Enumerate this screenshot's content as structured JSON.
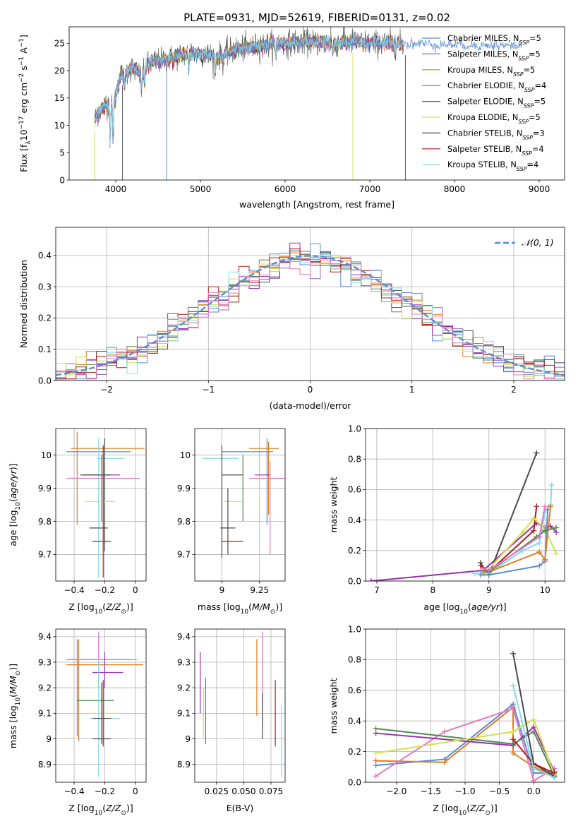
{
  "colors": {
    "Chabrier MILES": "#5b8bd6",
    "Salpeter MILES": "#9467bd",
    "Kroupa MILES": "#e07b1b",
    "Chabrier ELODIE": "#4d8a4d",
    "Salpeter ELODIE": "#9a2fb0",
    "Kroupa ELODIE": "#d3e247",
    "Chabrier STELIB": "#4a4a4a",
    "Salpeter STELIB": "#b01c1c",
    "Kroupa STELIB": "#84dbe5",
    "pink": "#e377c2",
    "gauss": "#5b8bd6",
    "grid": "#b0b0b0"
  },
  "chart_data": [
    {
      "id": "spectrum",
      "type": "line",
      "title": "PLATE=0931, MJD=52619, FIBERID=0131, z=0.02",
      "xlabel": "wavelength [Angstrom, rest frame]",
      "ylabel": "Flux [f_λ10^-17 erg cm^-2 s^-1 A^-1]",
      "xlim": [
        3450,
        9300
      ],
      "ylim": [
        0,
        28
      ],
      "xticks": [
        4000,
        5000,
        6000,
        7000,
        8000,
        9000
      ],
      "yticks": [
        0,
        5,
        10,
        15,
        20,
        25
      ],
      "grid": false,
      "legend_position": "top-right",
      "legend": [
        {
          "label": "Chabrier MILES, N",
          "sub": "SSP",
          "tail": "=5"
        },
        {
          "label": "Salpeter MILES, N",
          "sub": "SSP",
          "tail": "=5"
        },
        {
          "label": "Kroupa MILES, N",
          "sub": "SSP",
          "tail": "=5"
        },
        {
          "label": "Chabrier ELODIE, N",
          "sub": "SSP",
          "tail": "=4"
        },
        {
          "label": "Salpeter ELODIE, N",
          "sub": "SSP",
          "tail": "=5"
        },
        {
          "label": "Kroupa ELODIE, N",
          "sub": "SSP",
          "tail": "=5"
        },
        {
          "label": "Chabrier STELIB, N",
          "sub": "SSP",
          "tail": "=3"
        },
        {
          "label": "Salpeter STELIB, N",
          "sub": "SSP",
          "tail": "=4"
        },
        {
          "label": "Kroupa STELIB, N",
          "sub": "SSP",
          "tail": "=4"
        }
      ],
      "continuum": [
        [
          3750,
          11
        ],
        [
          3800,
          12.5
        ],
        [
          3900,
          14
        ],
        [
          3970,
          13
        ],
        [
          4050,
          19
        ],
        [
          4200,
          20.5
        ],
        [
          4300,
          19
        ],
        [
          4400,
          21.5
        ],
        [
          4600,
          22
        ],
        [
          4800,
          23
        ],
        [
          5000,
          23.2
        ],
        [
          5200,
          22.5
        ],
        [
          5400,
          23.8
        ],
        [
          5600,
          24.3
        ],
        [
          5800,
          24.8
        ],
        [
          6000,
          25
        ],
        [
          6200,
          25.2
        ],
        [
          6400,
          25.2
        ],
        [
          6600,
          25
        ],
        [
          6800,
          25.2
        ],
        [
          7000,
          25
        ],
        [
          7200,
          25
        ],
        [
          7400,
          24.8
        ],
        [
          7600,
          25
        ],
        [
          7800,
          24.7
        ],
        [
          8000,
          24.8
        ],
        [
          8200,
          24.6
        ],
        [
          8500,
          24.6
        ],
        [
          8800,
          24.5
        ]
      ]
    },
    {
      "id": "residuals",
      "type": "histogram",
      "xlabel": "(data-model)/error",
      "ylabel": "Normed distribution",
      "xlim": [
        -2.5,
        2.5
      ],
      "ylim": [
        0,
        0.49
      ],
      "xticks": [
        -2,
        -1,
        0,
        1,
        2
      ],
      "yticks": [
        0.0,
        0.1,
        0.2,
        0.3,
        0.4
      ],
      "grid": true,
      "legend_position": "top-right",
      "legend": [
        "𝒩(0, 1)"
      ],
      "gauss": {
        "mu": 0,
        "sigma": 1
      },
      "bins": {
        "start": -2.5,
        "width": 0.1
      }
    },
    {
      "id": "age_vs_z",
      "type": "errorbar",
      "xlabel": "Z [log10(Z/Z⊙)]",
      "ylabel": "age [log10(age/yr)]",
      "xlim": [
        -0.52,
        0.07
      ],
      "ylim": [
        9.62,
        10.08
      ],
      "xticks": [
        -0.4,
        -0.2,
        0.0
      ],
      "yticks": [
        9.7,
        9.8,
        9.9,
        10.0
      ],
      "grid": true,
      "points": [
        {
          "color": "Chabrier MILES",
          "x": -0.24,
          "xerr": 0.21,
          "y": 10.01,
          "yerr": 0.0
        },
        {
          "color": "Kroupa MILES",
          "x": -0.38,
          "xerr": 0.0,
          "y": 9.93,
          "yerr": 0.14
        },
        {
          "color": "Kroupa MILES",
          "x": -0.18,
          "xerr": 0.24,
          "y": 10.02,
          "yerr": 0.0
        },
        {
          "color": "Kroupa STELIB",
          "x": -0.24,
          "xerr": 0.0,
          "y": 9.84,
          "yerr": 0.21
        },
        {
          "color": "Kroupa STELIB",
          "x": -0.16,
          "xerr": 0.09,
          "y": 9.99,
          "yerr": 0.0
        },
        {
          "color": "pink",
          "x": -0.21,
          "xerr": 0.24,
          "y": 9.93,
          "yerr": 0.0
        },
        {
          "color": "Salpeter ELODIE",
          "x": -0.22,
          "xerr": 0.12,
          "y": 9.94,
          "yerr": 0.0
        },
        {
          "color": "Chabrier STELIB",
          "x": -0.26,
          "xerr": 0.1,
          "y": 9.94,
          "yerr": 0.0
        },
        {
          "color": "Chabrier STELIB",
          "x": -0.2,
          "xerr": 0.0,
          "y": 9.88,
          "yerr": 0.17
        },
        {
          "color": "Chabrier ELODIE",
          "x": -0.22,
          "xerr": 0.0,
          "y": 9.9,
          "yerr": 0.1
        },
        {
          "color": "Kroupa ELODIE",
          "x": -0.23,
          "xerr": 0.1,
          "y": 9.86,
          "yerr": 0.0
        },
        {
          "color": "Chabrier STELIB",
          "x": -0.24,
          "xerr": 0.06,
          "y": 9.78,
          "yerr": 0.0
        },
        {
          "color": "Salpeter STELIB",
          "x": -0.21,
          "xerr": 0.0,
          "y": 9.83,
          "yerr": 0.2
        },
        {
          "color": "Salpeter STELIB",
          "x": -0.22,
          "xerr": 0.06,
          "y": 9.74,
          "yerr": 0.0
        }
      ]
    },
    {
      "id": "age_vs_mass",
      "type": "errorbar",
      "xlabel": "mass [log10(M/M⊙)]",
      "ylabel": "",
      "xlim": [
        8.82,
        9.42
      ],
      "ylim": [
        9.62,
        10.08
      ],
      "xticks": [
        9.0,
        9.25
      ],
      "yticks": [
        9.7,
        9.8,
        9.9,
        10.0
      ],
      "grid": true,
      "points": [
        {
          "color": "Chabrier MILES",
          "x": 9.17,
          "xerr": 0.17,
          "y": 10.01,
          "yerr": 0.0
        },
        {
          "color": "Chabrier MILES",
          "x": 9.3,
          "xerr": 0.0,
          "y": 9.92,
          "yerr": 0.13
        },
        {
          "color": "Kroupa MILES",
          "x": 9.28,
          "xerr": 0.1,
          "y": 10.02,
          "yerr": 0.0
        },
        {
          "color": "Kroupa MILES",
          "x": 9.31,
          "xerr": 0.0,
          "y": 9.93,
          "yerr": 0.11
        },
        {
          "color": "Kroupa STELIB",
          "x": 8.99,
          "xerr": 0.12,
          "y": 9.99,
          "yerr": 0.0
        },
        {
          "color": "pink",
          "x": 9.3,
          "xerr": 0.12,
          "y": 9.93,
          "yerr": 0.0
        },
        {
          "color": "pink",
          "x": 9.32,
          "xerr": 0.0,
          "y": 9.84,
          "yerr": 0.14
        },
        {
          "color": "Salpeter ELODIE",
          "x": 9.27,
          "xerr": 0.05,
          "y": 9.94,
          "yerr": 0.0
        },
        {
          "color": "Chabrier STELIB",
          "x": 9.0,
          "xerr": 0.0,
          "y": 9.86,
          "yerr": 0.17
        },
        {
          "color": "Chabrier STELIB",
          "x": 9.07,
          "xerr": 0.07,
          "y": 9.94,
          "yerr": 0.0
        },
        {
          "color": "Chabrier ELODIE",
          "x": 9.14,
          "xerr": 0.0,
          "y": 9.9,
          "yerr": 0.1
        },
        {
          "color": "Kroupa ELODIE",
          "x": 9.08,
          "xerr": 0.07,
          "y": 9.86,
          "yerr": 0.0
        },
        {
          "color": "Chabrier STELIB",
          "x": 9.04,
          "xerr": 0.05,
          "y": 9.78,
          "yerr": 0.0
        },
        {
          "color": "Chabrier STELIB",
          "x": 9.04,
          "xerr": 0.0,
          "y": 9.8,
          "yerr": 0.1
        },
        {
          "color": "Salpeter STELIB",
          "x": 9.07,
          "xerr": 0.07,
          "y": 9.74,
          "yerr": 0.0
        }
      ]
    },
    {
      "id": "weight_vs_age",
      "type": "line",
      "xlabel": "age [log10(age/yr)]",
      "ylabel": "mass weight",
      "xlim": [
        6.8,
        10.35
      ],
      "ylim": [
        0,
        1.0
      ],
      "xticks": [
        7,
        8,
        9,
        10
      ],
      "yticks": [
        0.0,
        0.2,
        0.4,
        0.6,
        0.8,
        1.0
      ],
      "grid": true,
      "series": [
        {
          "color": "Salpeter ELODIE",
          "x": [
            6.9,
            8.9,
            9.85,
            10.0,
            10.1,
            10.2
          ],
          "y": [
            0.0,
            0.07,
            0.38,
            0.35,
            0.36,
            0.32
          ]
        },
        {
          "color": "Chabrier STELIB",
          "x": [
            8.85,
            9.0,
            9.85
          ],
          "y": [
            0.12,
            0.04,
            0.84
          ]
        },
        {
          "color": "Kroupa STELIB",
          "x": [
            8.75,
            9.0,
            9.6,
            9.9,
            10.0,
            10.1,
            10.12
          ],
          "y": [
            0.05,
            0.05,
            0.2,
            0.25,
            0.45,
            0.5,
            0.63
          ]
        },
        {
          "color": "Salpeter STELIB",
          "x": [
            8.85,
            9.0,
            9.8,
            9.85
          ],
          "y": [
            0.1,
            0.06,
            0.33,
            0.49
          ]
        },
        {
          "color": "Kroupa ELODIE",
          "x": [
            8.9,
            9.6,
            9.8,
            10.0,
            10.2
          ],
          "y": [
            0.04,
            0.32,
            0.41,
            0.34,
            0.18
          ]
        },
        {
          "color": "Chabrier MILES",
          "x": [
            8.85,
            9.0,
            9.9,
            10.0,
            10.05
          ],
          "y": [
            0.04,
            0.04,
            0.1,
            0.13,
            0.47
          ]
        },
        {
          "color": "Kroupa MILES",
          "x": [
            8.9,
            9.0,
            9.9,
            10.0,
            10.1
          ],
          "y": [
            0.06,
            0.06,
            0.19,
            0.14,
            0.49
          ]
        },
        {
          "color": "Chabrier ELODIE",
          "x": [
            8.9,
            9.0,
            9.85,
            10.0,
            10.2
          ],
          "y": [
            0.07,
            0.06,
            0.29,
            0.33,
            0.35
          ]
        },
        {
          "color": "pink",
          "x": [
            8.9,
            9.0,
            9.9,
            10.0
          ],
          "y": [
            0.08,
            0.07,
            0.29,
            0.49
          ]
        }
      ]
    },
    {
      "id": "mass_vs_z",
      "type": "errorbar",
      "xlabel": "Z [log10(Z/Z⊙)]",
      "ylabel": "mass [log10(M/M⊙)]",
      "xlim": [
        -0.52,
        0.07
      ],
      "ylim": [
        8.83,
        9.43
      ],
      "xticks": [
        -0.4,
        -0.2,
        0.0
      ],
      "yticks": [
        8.9,
        9.0,
        9.1,
        9.2,
        9.3,
        9.4
      ],
      "grid": true,
      "points": [
        {
          "color": "Chabrier MILES",
          "x": -0.24,
          "xerr": 0.21,
          "y": 9.31,
          "yerr": 0.0
        },
        {
          "color": "Chabrier MILES",
          "x": -0.38,
          "xerr": 0.0,
          "y": 9.2,
          "yerr": 0.19
        },
        {
          "color": "Kroupa MILES",
          "x": -0.2,
          "xerr": 0.25,
          "y": 9.29,
          "yerr": 0.0
        },
        {
          "color": "Kroupa MILES",
          "x": -0.37,
          "xerr": 0.0,
          "y": 9.19,
          "yerr": 0.2
        },
        {
          "color": "pink",
          "x": -0.22,
          "xerr": 0.23,
          "y": 9.31,
          "yerr": 0.0
        },
        {
          "color": "pink",
          "x": -0.24,
          "xerr": 0.0,
          "y": 9.31,
          "yerr": 0.11
        },
        {
          "color": "Salpeter ELODIE",
          "x": -0.18,
          "xerr": 0.1,
          "y": 9.26,
          "yerr": 0.0
        },
        {
          "color": "Salpeter ELODIE",
          "x": -0.2,
          "xerr": 0.0,
          "y": 9.27,
          "yerr": 0.07
        },
        {
          "color": "Chabrier ELODIE",
          "x": -0.26,
          "xerr": 0.12,
          "y": 9.15,
          "yerr": 0.0
        },
        {
          "color": "Kroupa ELODIE",
          "x": -0.22,
          "xerr": 0.09,
          "y": 9.1,
          "yerr": 0.0
        },
        {
          "color": "Kroupa STELIB",
          "x": -0.2,
          "xerr": 0.1,
          "y": 9.08,
          "yerr": 0.0
        },
        {
          "color": "Kroupa STELIB",
          "x": -0.24,
          "xerr": 0.0,
          "y": 9.08,
          "yerr": 0.23
        },
        {
          "color": "Chabrier STELIB",
          "x": -0.22,
          "xerr": 0.06,
          "y": 9.08,
          "yerr": 0.0
        },
        {
          "color": "Chabrier STELIB",
          "x": -0.22,
          "xerr": 0.06,
          "y": 9.0,
          "yerr": 0.0
        },
        {
          "color": "Chabrier STELIB",
          "x": -0.22,
          "xerr": 0.0,
          "y": 9.1,
          "yerr": 0.12
        },
        {
          "color": "Salpeter STELIB",
          "x": -0.21,
          "xerr": 0.0,
          "y": 9.1,
          "yerr": 0.13
        }
      ]
    },
    {
      "id": "mass_vs_ebv",
      "type": "errorbar",
      "xlabel": "E(B-V)",
      "ylabel": "",
      "xlim": [
        0.005,
        0.088
      ],
      "ylim": [
        8.83,
        9.43
      ],
      "xticks": [
        0.025,
        0.05,
        0.075
      ],
      "xtick_labels": [
        "0.025",
        "0.050",
        "0.075"
      ],
      "yticks": [
        8.9,
        9.0,
        9.1,
        9.2,
        9.3,
        9.4
      ],
      "grid": true,
      "points": [
        {
          "color": "Salpeter ELODIE",
          "x": 0.01,
          "xerr": 0.0,
          "y": 9.22,
          "yerr": 0.12
        },
        {
          "color": "Kroupa ELODIE",
          "x": 0.013,
          "xerr": 0.0,
          "y": 9.1,
          "yerr": 0.1
        },
        {
          "color": "Chabrier ELODIE",
          "x": 0.015,
          "xerr": 0.0,
          "y": 9.11,
          "yerr": 0.13
        },
        {
          "color": "Kroupa MILES",
          "x": 0.062,
          "xerr": 0.0,
          "y": 9.24,
          "yerr": 0.15
        },
        {
          "color": "pink",
          "x": 0.067,
          "xerr": 0.0,
          "y": 9.23,
          "yerr": 0.19
        },
        {
          "color": "Chabrier STELIB",
          "x": 0.067,
          "xerr": 0.0,
          "y": 9.09,
          "yerr": 0.09
        },
        {
          "color": "Salpeter STELIB",
          "x": 0.079,
          "xerr": 0.0,
          "y": 9.1,
          "yerr": 0.13
        },
        {
          "color": "Kroupa STELIB",
          "x": 0.085,
          "xerr": 0.0,
          "y": 8.99,
          "yerr": 0.14
        }
      ]
    },
    {
      "id": "weight_vs_z",
      "type": "line",
      "xlabel": "Z [log10(Z/Z⊙)]",
      "ylabel": "mass weight",
      "xlim": [
        -2.45,
        0.45
      ],
      "ylim": [
        0,
        1.0
      ],
      "xticks": [
        -2.0,
        -1.5,
        -1.0,
        -0.5,
        0.0
      ],
      "yticks": [
        0.0,
        0.2,
        0.4,
        0.6,
        0.8,
        1.0
      ],
      "grid": true,
      "series": [
        {
          "color": "Chabrier MILES",
          "x": [
            -2.3,
            -1.3,
            -0.3,
            0.0,
            0.3
          ],
          "y": [
            0.11,
            0.15,
            0.51,
            0.06,
            0.06
          ]
        },
        {
          "color": "Kroupa MILES",
          "x": [
            -2.3,
            -1.3,
            -0.3,
            -0.3,
            0.0,
            0.3
          ],
          "y": [
            0.14,
            0.13,
            0.49,
            0.19,
            0.1,
            0.04
          ]
        },
        {
          "color": "pink",
          "x": [
            -2.3,
            -1.3,
            -0.3,
            0.0,
            0.3
          ],
          "y": [
            0.04,
            0.33,
            0.48,
            0.01,
            0.09
          ]
        },
        {
          "color": "Salpeter ELODIE",
          "x": [
            -2.3,
            -0.3,
            0.0,
            0.3
          ],
          "y": [
            0.32,
            0.24,
            0.36,
            0.07
          ]
        },
        {
          "color": "Chabrier ELODIE",
          "x": [
            -2.3,
            -0.3,
            0.0,
            0.3
          ],
          "y": [
            0.35,
            0.25,
            0.33,
            0.04
          ]
        },
        {
          "color": "Kroupa ELODIE",
          "x": [
            -2.3,
            -0.3,
            0.0,
            0.3
          ],
          "y": [
            0.19,
            0.33,
            0.41,
            0.05
          ]
        },
        {
          "color": "Chabrier STELIB",
          "x": [
            -0.3,
            0.0,
            0.3
          ],
          "y": [
            0.84,
            0.12,
            0.04
          ]
        },
        {
          "color": "Salpeter STELIB",
          "x": [
            -0.3,
            0.0,
            0.3
          ],
          "y": [
            0.28,
            0.12,
            0.06
          ]
        },
        {
          "color": "Kroupa STELIB",
          "x": [
            -0.3,
            0.0,
            0.3
          ],
          "y": [
            0.63,
            0.09,
            0.03
          ]
        }
      ]
    }
  ]
}
